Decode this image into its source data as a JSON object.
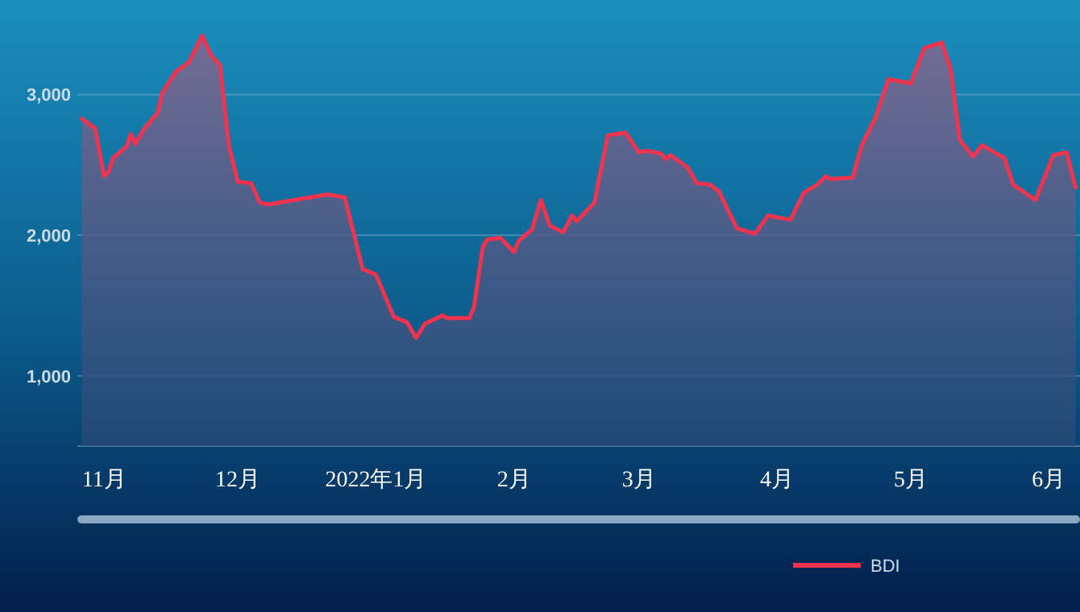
{
  "chart_data": {
    "type": "area",
    "x": [
      "2021-10-27",
      "2021-10-30",
      "2021-11-01",
      "2021-11-02",
      "2021-11-03",
      "2021-11-06",
      "2021-11-07",
      "2021-11-08",
      "2021-11-10",
      "2021-11-13",
      "2021-11-14",
      "2021-11-17",
      "2021-11-20",
      "2021-11-23",
      "2021-11-25",
      "2021-11-27",
      "2021-11-29",
      "2021-12-01",
      "2021-12-04",
      "2021-12-06",
      "2021-12-08",
      "2021-12-21",
      "2021-12-25",
      "2021-12-29",
      "2022-01-01",
      "2022-01-05",
      "2022-01-08",
      "2022-01-10",
      "2022-01-12",
      "2022-01-16",
      "2022-01-17",
      "2022-01-22",
      "2022-01-23",
      "2022-01-25",
      "2022-01-26",
      "2022-01-29",
      "2022-02-01",
      "2022-02-02",
      "2022-02-05",
      "2022-02-07",
      "2022-02-09",
      "2022-02-12",
      "2022-02-14",
      "2022-02-15",
      "2022-02-19",
      "2022-02-22",
      "2022-02-26",
      "2022-03-01",
      "2022-03-03",
      "2022-03-06",
      "2022-03-07",
      "2022-03-08",
      "2022-03-12",
      "2022-03-14",
      "2022-03-17",
      "2022-03-19",
      "2022-03-23",
      "2022-03-27",
      "2022-03-30",
      "2022-04-04",
      "2022-04-07",
      "2022-04-10",
      "2022-04-12",
      "2022-04-13",
      "2022-04-18",
      "2022-04-20",
      "2022-04-23",
      "2022-04-26",
      "2022-05-01",
      "2022-05-04",
      "2022-05-08",
      "2022-05-10",
      "2022-05-12",
      "2022-05-15",
      "2022-05-17",
      "2022-05-22",
      "2022-05-24",
      "2022-05-29",
      "2022-06-02",
      "2022-06-05",
      "2022-06-07"
    ],
    "series": [
      {
        "name": "BDI",
        "color": "#f0344f",
        "values": [
          2830,
          2760,
          2420,
          2450,
          2550,
          2630,
          2720,
          2650,
          2760,
          2870,
          3010,
          3160,
          3230,
          3420,
          3280,
          3210,
          2640,
          2380,
          2370,
          2230,
          2220,
          2290,
          2270,
          1760,
          1720,
          1420,
          1380,
          1270,
          1370,
          1430,
          1410,
          1410,
          1490,
          1920,
          1970,
          1980,
          1880,
          1960,
          2040,
          2250,
          2070,
          2020,
          2140,
          2100,
          2230,
          2710,
          2730,
          2590,
          2600,
          2580,
          2540,
          2570,
          2480,
          2370,
          2360,
          2310,
          2050,
          2010,
          2140,
          2110,
          2300,
          2360,
          2420,
          2400,
          2410,
          2640,
          2830,
          3110,
          3080,
          3330,
          3370,
          3180,
          2680,
          2560,
          2640,
          2550,
          2360,
          2250,
          2570,
          2590,
          2340
        ]
      }
    ],
    "xlim": [
      "2021-10-26",
      "2022-06-08"
    ],
    "xticks": [
      {
        "value": "2021-11-01",
        "label": "11月"
      },
      {
        "value": "2021-12-01",
        "label": "12月"
      },
      {
        "value": "2022-01-01",
        "label": "2022年1月"
      },
      {
        "value": "2022-02-01",
        "label": "2月"
      },
      {
        "value": "2022-03-01",
        "label": "3月"
      },
      {
        "value": "2022-04-01",
        "label": "4月"
      },
      {
        "value": "2022-05-01",
        "label": "5月"
      },
      {
        "value": "2022-06-01",
        "label": "6月"
      }
    ],
    "ylim": [
      500,
      3650
    ],
    "yticks": [
      {
        "value": 1000,
        "label": "1,000"
      },
      {
        "value": 2000,
        "label": "2,000"
      },
      {
        "value": 3000,
        "label": "3,000"
      }
    ],
    "grid": "y",
    "legend": "bottom"
  }
}
